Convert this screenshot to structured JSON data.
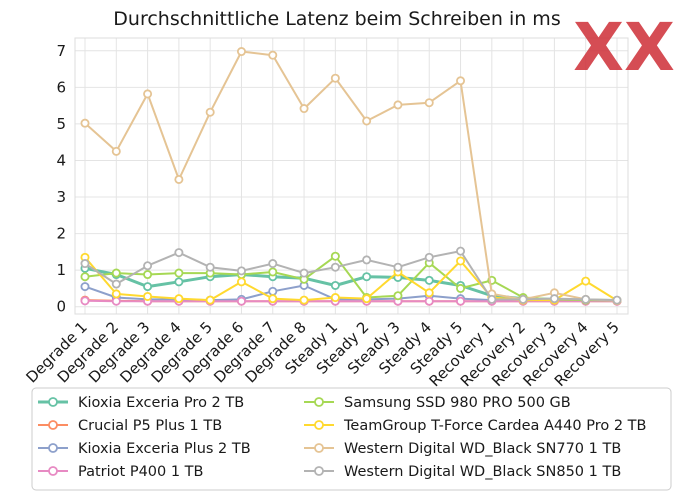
{
  "chart_data": {
    "type": "line",
    "title": "Durchschnittliche Latenz beim Schreiben in ms",
    "xlabel": "",
    "ylabel": "",
    "ylim": [
      -0.2,
      7.35
    ],
    "yticks": [
      0,
      1,
      2,
      3,
      4,
      5,
      6,
      7
    ],
    "grid": true,
    "legend_position": "bottom",
    "categories": [
      "Degrade 1",
      "Degrade 2",
      "Degrade 3",
      "Degrade 4",
      "Degrade 5",
      "Degrade 6",
      "Degrade 7",
      "Degrade 8",
      "Steady 1",
      "Steady 2",
      "Steady 3",
      "Steady 4",
      "Steady 5",
      "Recovery 1",
      "Recovery 2",
      "Recovery 3",
      "Recovery 4",
      "Recovery 5"
    ],
    "series": [
      {
        "name": "Kioxia Exceria Pro 2 TB",
        "color": "#66c2a5",
        "bold": true,
        "values": [
          1.05,
          0.88,
          0.55,
          0.68,
          0.82,
          0.88,
          0.82,
          0.78,
          0.58,
          0.82,
          0.8,
          0.72,
          0.58,
          0.3,
          0.22,
          0.2,
          0.18,
          0.17
        ]
      },
      {
        "name": "Crucial P5 Plus 1 TB",
        "color": "#fc8d62",
        "values": [
          0.18,
          0.16,
          0.15,
          0.15,
          0.15,
          0.15,
          0.15,
          0.15,
          0.15,
          0.15,
          0.15,
          0.15,
          0.15,
          0.15,
          0.15,
          0.15,
          0.15,
          0.15
        ]
      },
      {
        "name": "Kioxia Exceria Plus 2 TB",
        "color": "#8da0cb",
        "values": [
          0.55,
          0.25,
          0.2,
          0.2,
          0.18,
          0.2,
          0.42,
          0.58,
          0.2,
          0.2,
          0.22,
          0.3,
          0.22,
          0.18,
          0.18,
          0.18,
          0.17,
          0.16
        ]
      },
      {
        "name": "Patriot P400 1 TB",
        "color": "#e78ac3",
        "values": [
          0.16,
          0.15,
          0.15,
          0.15,
          0.15,
          0.15,
          0.15,
          0.15,
          0.15,
          0.15,
          0.15,
          0.15,
          0.15,
          0.15,
          0.15,
          0.15,
          0.15,
          0.15
        ]
      },
      {
        "name": "Samsung SSD 980 PRO 500 GB",
        "color": "#a6d854",
        "values": [
          0.82,
          0.92,
          0.88,
          0.92,
          0.92,
          0.88,
          0.95,
          0.75,
          1.38,
          0.25,
          0.3,
          1.2,
          0.5,
          0.72,
          0.25,
          0.2,
          0.18,
          0.17
        ]
      },
      {
        "name": "TeamGroup T-Force Cardea A440 Pro 2 TB",
        "color": "#ffd92f",
        "values": [
          1.35,
          0.35,
          0.28,
          0.22,
          0.18,
          0.68,
          0.22,
          0.18,
          0.25,
          0.22,
          0.95,
          0.38,
          1.25,
          0.25,
          0.18,
          0.18,
          0.7,
          0.17
        ]
      },
      {
        "name": "Western Digital WD_Black SN770 1 TB",
        "color": "#e5c494",
        "values": [
          5.02,
          4.25,
          5.82,
          3.48,
          5.32,
          6.98,
          6.88,
          5.42,
          6.25,
          5.08,
          5.52,
          5.58,
          6.18,
          0.35,
          0.2,
          0.38,
          0.2,
          0.17
        ]
      },
      {
        "name": "Western Digital WD_Black SN850 1 TB",
        "color": "#b3b3b3",
        "values": [
          1.18,
          0.62,
          1.12,
          1.48,
          1.08,
          0.98,
          1.18,
          0.92,
          1.08,
          1.28,
          1.08,
          1.35,
          1.52,
          0.2,
          0.2,
          0.22,
          0.2,
          0.18
        ]
      }
    ]
  },
  "logo": {
    "text": "XX",
    "color": "#d0353d"
  }
}
